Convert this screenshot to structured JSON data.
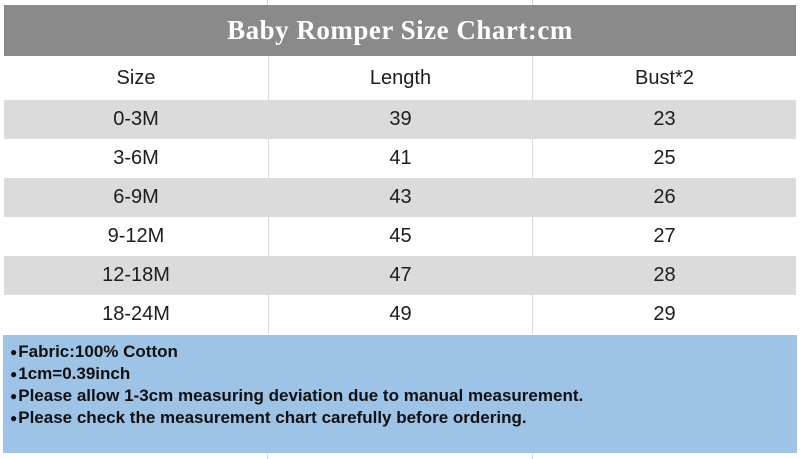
{
  "chart_data": {
    "type": "table",
    "title": "Baby Romper Size Chart:cm",
    "unit": "cm",
    "columns": [
      "Size",
      "Length",
      "Bust*2"
    ],
    "rows": [
      [
        "0-3M",
        "39",
        "23"
      ],
      [
        "3-6M",
        "41",
        "25"
      ],
      [
        "6-9M",
        "43",
        "26"
      ],
      [
        "9-12M",
        "45",
        "27"
      ],
      [
        "12-18M",
        "47",
        "28"
      ],
      [
        "18-24M",
        "49",
        "29"
      ]
    ],
    "layout_hints": {
      "alternating_row_fill": "gray/white starting gray",
      "column_dividers_visible_on_white_rows": true
    }
  },
  "notes": {
    "bullet": "●",
    "items": [
      "Fabric:100% Cotton",
      "1cm=0.39inch",
      "Please allow 1-3cm measuring deviation due to manual measurement.",
      "Please check the measurement chart carefully before ordering."
    ]
  },
  "colors": {
    "title_bar_bg": "#8a8a8a",
    "title_text": "#ffffff",
    "row_alt_bg": "#dbdbdb",
    "row_bg": "#ffffff",
    "grid_line": "#d9d9d9",
    "notes_bg": "#9dc3e6",
    "table_text": "#1c1c1c",
    "notes_text": "#101010"
  }
}
